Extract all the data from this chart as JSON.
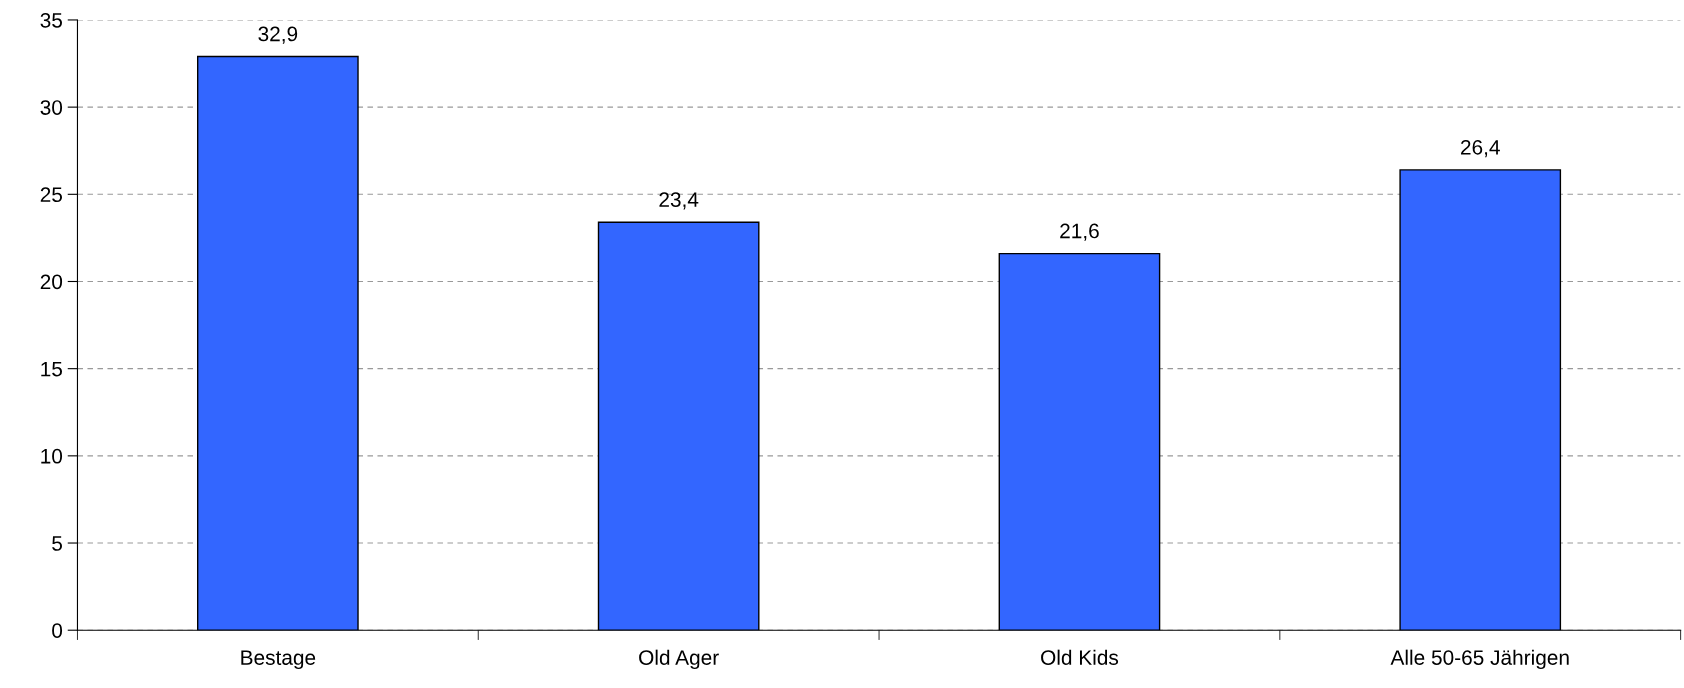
{
  "chart_data": {
    "type": "bar",
    "categories": [
      "Bestage",
      "Old Ager",
      "Old Kids",
      "Alle 50-65 Jährigen"
    ],
    "values": [
      32.9,
      23.4,
      21.6,
      26.4
    ],
    "value_labels": [
      "32,9",
      "23,4",
      "21,6",
      "26,4"
    ],
    "color": "#3366ff",
    "ylim": [
      0,
      35
    ],
    "yticks": [
      0,
      5,
      10,
      15,
      20,
      25,
      30,
      35
    ],
    "grid": "y"
  }
}
